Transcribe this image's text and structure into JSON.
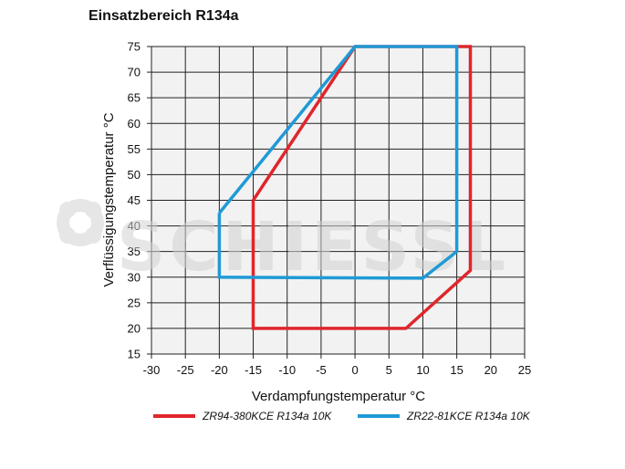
{
  "chart_data": {
    "type": "line",
    "title": "Einsatzbereich R134a",
    "xlabel": "Verdampfungstemperatur °C",
    "ylabel": "Verflüssigungstemperatur °C",
    "xlim": [
      -30,
      25
    ],
    "ylim": [
      15,
      75
    ],
    "xticks": [
      -30,
      -25,
      -20,
      -15,
      -10,
      -5,
      0,
      5,
      10,
      15,
      20,
      25
    ],
    "yticks": [
      15,
      20,
      25,
      30,
      35,
      40,
      45,
      50,
      55,
      60,
      65,
      70,
      75
    ],
    "grid": true,
    "legend_position": "bottom",
    "series": [
      {
        "name": "ZR94-380KCE R134a 10K",
        "color": "#e0262b",
        "closed": true,
        "points": [
          [
            -15,
            45
          ],
          [
            0,
            75
          ],
          [
            17,
            75
          ],
          [
            17,
            31.3
          ],
          [
            7.5,
            20
          ],
          [
            -15,
            20
          ],
          [
            -15,
            45
          ]
        ]
      },
      {
        "name": "ZR22-81KCE R134a 10K",
        "color": "#1f9ad6",
        "closed": true,
        "points": [
          [
            -20,
            42.5
          ],
          [
            0,
            75
          ],
          [
            15,
            75
          ],
          [
            15,
            35
          ],
          [
            10,
            29.8
          ],
          [
            -20,
            30
          ],
          [
            -20,
            42.5
          ]
        ]
      }
    ]
  },
  "watermark": {
    "text": "SCHIESSL",
    "icon": "schiessl-logo-icon"
  },
  "colors": {
    "plot_background": "#f2f2f2",
    "grid": "#222222"
  }
}
